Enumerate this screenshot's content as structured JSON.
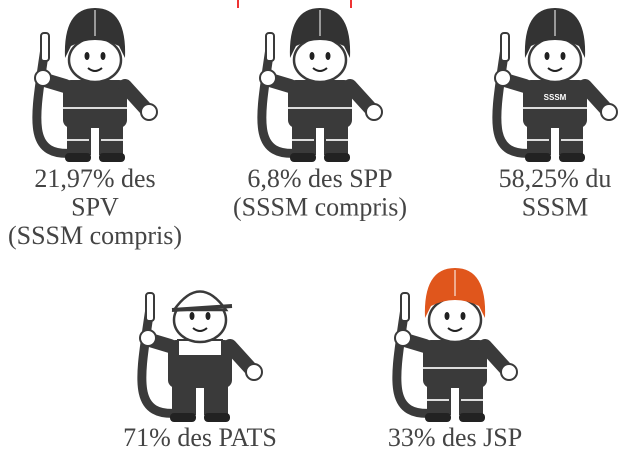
{
  "items": [
    {
      "lines": [
        "21,97% des",
        "SPV",
        "(SSSM compris)"
      ]
    },
    {
      "lines": [
        "6,8% des SPP",
        "(SSSM compris)"
      ]
    },
    {
      "lines": [
        "58,25% du",
        "SSSM"
      ],
      "badge": "SSSM"
    },
    {
      "lines": [
        "71% des PATS"
      ]
    },
    {
      "lines": [
        "33% des JSP"
      ]
    }
  ]
}
